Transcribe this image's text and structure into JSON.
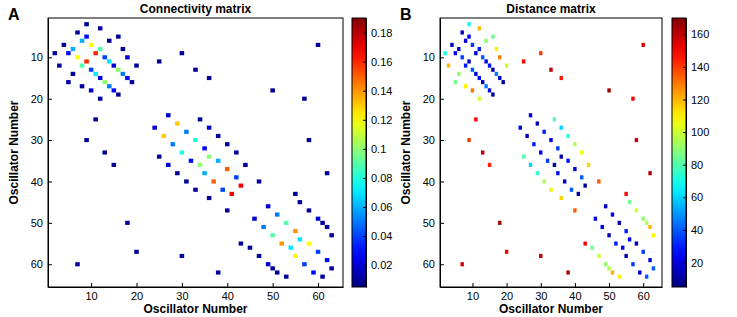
{
  "chart_data": [
    {
      "type": "heatmap",
      "annotation": "A",
      "title": "Connectivity matrix",
      "xlabel": "Oscillator Number",
      "ylabel": "Oscillator Number",
      "xlim": [
        0.5,
        65.5
      ],
      "ylim": [
        0.5,
        65.5
      ],
      "xticks": [
        10,
        20,
        30,
        40,
        50,
        60
      ],
      "yticks": [
        10,
        20,
        30,
        40,
        50,
        60
      ],
      "colorbar": {
        "range": [
          0.005,
          0.19
        ],
        "ticks": [
          0.02,
          0.04,
          0.06,
          0.08,
          0.1,
          0.12,
          0.14,
          0.16,
          0.18
        ]
      },
      "cells": [
        [
          4,
          7,
          0.01
        ],
        [
          7,
          4,
          0.01
        ],
        [
          5,
          9,
          0.03
        ],
        [
          9,
          5,
          0.03
        ],
        [
          6,
          8,
          0.06
        ],
        [
          8,
          6,
          0.06
        ],
        [
          7,
          10,
          0.12
        ],
        [
          10,
          7,
          0.12
        ],
        [
          8,
          12,
          0.09
        ],
        [
          12,
          8,
          0.09
        ],
        [
          9,
          11,
          0.16
        ],
        [
          11,
          9,
          0.16
        ],
        [
          10,
          13,
          0.04
        ],
        [
          13,
          10,
          0.04
        ],
        [
          11,
          14,
          0.07
        ],
        [
          14,
          11,
          0.07
        ],
        [
          12,
          15,
          0.02
        ],
        [
          15,
          12,
          0.02
        ],
        [
          13,
          16,
          0.1
        ],
        [
          16,
          13,
          0.1
        ],
        [
          14,
          17,
          0.05
        ],
        [
          17,
          14,
          0.05
        ],
        [
          15,
          18,
          0.03
        ],
        [
          18,
          15,
          0.03
        ],
        [
          16,
          19,
          0.01
        ],
        [
          19,
          16,
          0.01
        ],
        [
          6,
          14,
          0.01
        ],
        [
          14,
          6,
          0.01
        ],
        [
          8,
          17,
          0.01
        ],
        [
          17,
          8,
          0.01
        ],
        [
          10,
          18,
          0.02
        ],
        [
          18,
          10,
          0.02
        ],
        [
          12,
          20,
          0.01
        ],
        [
          20,
          12,
          0.01
        ],
        [
          3,
          12,
          0.01
        ],
        [
          12,
          3,
          0.01
        ],
        [
          5,
          16,
          0.01
        ],
        [
          16,
          5,
          0.01
        ],
        [
          2,
          9,
          0.01
        ],
        [
          9,
          2,
          0.01
        ],
        [
          11,
          25,
          0.01
        ],
        [
          25,
          11,
          0.01
        ],
        [
          9,
          30,
          0.01
        ],
        [
          30,
          9,
          0.01
        ],
        [
          13,
          33,
          0.01
        ],
        [
          33,
          13,
          0.01
        ],
        [
          15,
          36,
          0.01
        ],
        [
          36,
          15,
          0.01
        ],
        [
          18,
          50,
          0.01
        ],
        [
          50,
          18,
          0.01
        ],
        [
          7,
          60,
          0.01
        ],
        [
          60,
          7,
          0.01
        ],
        [
          20,
          57,
          0.01
        ],
        [
          57,
          20,
          0.01
        ],
        [
          24,
          27,
          0.02
        ],
        [
          27,
          24,
          0.02
        ],
        [
          26,
          29,
          0.13
        ],
        [
          29,
          26,
          0.13
        ],
        [
          28,
          31,
          0.05
        ],
        [
          31,
          28,
          0.05
        ],
        [
          30,
          33,
          0.08
        ],
        [
          33,
          30,
          0.08
        ],
        [
          32,
          35,
          0.03
        ],
        [
          35,
          32,
          0.03
        ],
        [
          34,
          36,
          0.1
        ],
        [
          36,
          34,
          0.1
        ],
        [
          35,
          38,
          0.06
        ],
        [
          38,
          35,
          0.06
        ],
        [
          37,
          40,
          0.15
        ],
        [
          40,
          37,
          0.15
        ],
        [
          39,
          42,
          0.04
        ],
        [
          42,
          39,
          0.04
        ],
        [
          41,
          43,
          0.17
        ],
        [
          43,
          41,
          0.17
        ],
        [
          29,
          38,
          0.01
        ],
        [
          38,
          29,
          0.01
        ],
        [
          31,
          40,
          0.01
        ],
        [
          40,
          31,
          0.01
        ],
        [
          27,
          36,
          0.02
        ],
        [
          36,
          27,
          0.02
        ],
        [
          33,
          42,
          0.01
        ],
        [
          42,
          33,
          0.01
        ],
        [
          25,
          34,
          0.01
        ],
        [
          34,
          25,
          0.01
        ],
        [
          36,
          44,
          0.01
        ],
        [
          44,
          36,
          0.01
        ],
        [
          40,
          47,
          0.01
        ],
        [
          47,
          40,
          0.01
        ],
        [
          43,
          55,
          0.01
        ],
        [
          55,
          43,
          0.01
        ],
        [
          30,
          58,
          0.01
        ],
        [
          58,
          30,
          0.01
        ],
        [
          38,
          62,
          0.01
        ],
        [
          62,
          38,
          0.01
        ],
        [
          46,
          49,
          0.02
        ],
        [
          49,
          46,
          0.02
        ],
        [
          48,
          51,
          0.05
        ],
        [
          51,
          48,
          0.05
        ],
        [
          50,
          53,
          0.09
        ],
        [
          53,
          50,
          0.09
        ],
        [
          52,
          55,
          0.14
        ],
        [
          55,
          52,
          0.14
        ],
        [
          54,
          56,
          0.07
        ],
        [
          56,
          54,
          0.07
        ],
        [
          55,
          58,
          0.12
        ],
        [
          58,
          55,
          0.12
        ],
        [
          57,
          60,
          0.04
        ],
        [
          60,
          57,
          0.04
        ],
        [
          59,
          62,
          0.03
        ],
        [
          62,
          59,
          0.03
        ],
        [
          61,
          63,
          0.01
        ],
        [
          63,
          61,
          0.01
        ],
        [
          47,
          58,
          0.01
        ],
        [
          58,
          47,
          0.01
        ],
        [
          49,
          60,
          0.02
        ],
        [
          60,
          49,
          0.02
        ],
        [
          51,
          62,
          0.01
        ],
        [
          62,
          51,
          0.01
        ],
        [
          53,
          63,
          0.01
        ],
        [
          63,
          53,
          0.01
        ],
        [
          45,
          56,
          0.01
        ],
        [
          56,
          45,
          0.01
        ],
        [
          50,
          61,
          0.01
        ],
        [
          61,
          50,
          0.01
        ]
      ]
    },
    {
      "type": "heatmap",
      "annotation": "B",
      "title": "Distance matrix",
      "xlabel": "Oscillator Number",
      "ylabel": "Oscillator Number",
      "xlim": [
        0.5,
        65.5
      ],
      "ylim": [
        0.5,
        65.5
      ],
      "xticks": [
        10,
        20,
        30,
        40,
        50,
        60
      ],
      "yticks": [
        10,
        20,
        30,
        40,
        50,
        60
      ],
      "colorbar": {
        "range": [
          5,
          170
        ],
        "ticks": [
          20,
          40,
          60,
          80,
          100,
          120,
          140,
          160
        ]
      },
      "cells": [
        [
          4,
          7,
          15
        ],
        [
          7,
          4,
          15
        ],
        [
          5,
          9,
          25
        ],
        [
          9,
          5,
          25
        ],
        [
          6,
          8,
          20
        ],
        [
          8,
          6,
          20
        ],
        [
          7,
          10,
          35
        ],
        [
          10,
          7,
          35
        ],
        [
          8,
          12,
          30
        ],
        [
          12,
          8,
          30
        ],
        [
          9,
          11,
          18
        ],
        [
          11,
          9,
          18
        ],
        [
          10,
          13,
          40
        ],
        [
          13,
          10,
          40
        ],
        [
          11,
          14,
          22
        ],
        [
          14,
          11,
          22
        ],
        [
          12,
          15,
          28
        ],
        [
          15,
          12,
          28
        ],
        [
          13,
          16,
          12
        ],
        [
          16,
          13,
          12
        ],
        [
          14,
          17,
          45
        ],
        [
          17,
          14,
          45
        ],
        [
          15,
          18,
          20
        ],
        [
          18,
          15,
          20
        ],
        [
          16,
          19,
          10
        ],
        [
          19,
          16,
          10
        ],
        [
          6,
          14,
          90
        ],
        [
          14,
          6,
          90
        ],
        [
          8,
          17,
          110
        ],
        [
          17,
          8,
          110
        ],
        [
          10,
          18,
          130
        ],
        [
          18,
          10,
          130
        ],
        [
          12,
          20,
          100
        ],
        [
          20,
          12,
          100
        ],
        [
          3,
          12,
          120
        ],
        [
          12,
          3,
          120
        ],
        [
          5,
          16,
          85
        ],
        [
          16,
          5,
          85
        ],
        [
          2,
          9,
          70
        ],
        [
          9,
          2,
          70
        ],
        [
          11,
          25,
          150
        ],
        [
          25,
          11,
          150
        ],
        [
          9,
          30,
          140
        ],
        [
          30,
          9,
          140
        ],
        [
          13,
          33,
          160
        ],
        [
          33,
          13,
          160
        ],
        [
          15,
          36,
          145
        ],
        [
          36,
          15,
          145
        ],
        [
          18,
          50,
          165
        ],
        [
          50,
          18,
          165
        ],
        [
          7,
          60,
          155
        ],
        [
          60,
          7,
          155
        ],
        [
          20,
          57,
          150
        ],
        [
          57,
          20,
          150
        ],
        [
          24,
          27,
          20
        ],
        [
          27,
          24,
          20
        ],
        [
          26,
          29,
          15
        ],
        [
          29,
          26,
          15
        ],
        [
          28,
          31,
          30
        ],
        [
          31,
          28,
          30
        ],
        [
          30,
          33,
          25
        ],
        [
          33,
          30,
          25
        ],
        [
          32,
          35,
          35
        ],
        [
          35,
          32,
          35
        ],
        [
          34,
          36,
          12
        ],
        [
          36,
          34,
          12
        ],
        [
          35,
          38,
          28
        ],
        [
          38,
          35,
          28
        ],
        [
          37,
          40,
          18
        ],
        [
          40,
          37,
          18
        ],
        [
          39,
          42,
          40
        ],
        [
          42,
          39,
          40
        ],
        [
          41,
          43,
          10
        ],
        [
          43,
          41,
          10
        ],
        [
          29,
          38,
          75
        ],
        [
          38,
          29,
          75
        ],
        [
          31,
          40,
          95
        ],
        [
          40,
          31,
          95
        ],
        [
          27,
          36,
          60
        ],
        [
          36,
          27,
          60
        ],
        [
          33,
          42,
          105
        ],
        [
          42,
          33,
          105
        ],
        [
          25,
          34,
          80
        ],
        [
          34,
          25,
          80
        ],
        [
          36,
          44,
          115
        ],
        [
          44,
          36,
          115
        ],
        [
          40,
          47,
          135
        ],
        [
          47,
          40,
          135
        ],
        [
          43,
          55,
          150
        ],
        [
          55,
          43,
          150
        ],
        [
          30,
          58,
          158
        ],
        [
          58,
          30,
          158
        ],
        [
          38,
          62,
          162
        ],
        [
          62,
          38,
          162
        ],
        [
          46,
          49,
          18
        ],
        [
          49,
          46,
          18
        ],
        [
          48,
          51,
          22
        ],
        [
          51,
          48,
          22
        ],
        [
          50,
          53,
          14
        ],
        [
          53,
          50,
          14
        ],
        [
          52,
          55,
          30
        ],
        [
          55,
          52,
          30
        ],
        [
          54,
          56,
          25
        ],
        [
          56,
          54,
          25
        ],
        [
          55,
          58,
          12
        ],
        [
          58,
          55,
          12
        ],
        [
          57,
          60,
          35
        ],
        [
          60,
          57,
          35
        ],
        [
          59,
          62,
          20
        ],
        [
          62,
          59,
          20
        ],
        [
          61,
          63,
          40
        ],
        [
          63,
          61,
          40
        ],
        [
          47,
          58,
          100
        ],
        [
          58,
          47,
          100
        ],
        [
          49,
          60,
          90
        ],
        [
          60,
          49,
          90
        ],
        [
          51,
          62,
          120
        ],
        [
          62,
          51,
          120
        ],
        [
          53,
          63,
          110
        ],
        [
          63,
          53,
          110
        ],
        [
          45,
          56,
          85
        ],
        [
          56,
          45,
          85
        ],
        [
          50,
          61,
          95
        ],
        [
          61,
          50,
          95
        ]
      ]
    }
  ]
}
